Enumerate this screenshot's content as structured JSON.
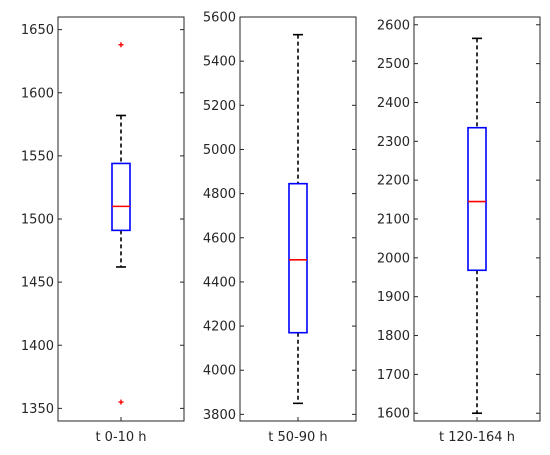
{
  "chart_data": [
    {
      "type": "boxplot",
      "categories": [
        "t 0-10 h"
      ],
      "ylim": [
        1340,
        1660
      ],
      "yticks": [
        1350,
        1400,
        1450,
        1500,
        1550,
        1600,
        1650
      ],
      "boxes": [
        {
          "whisker_low": 1462,
          "q1": 1491,
          "median": 1510,
          "q3": 1544,
          "whisker_high": 1582,
          "outliers": [
            1638,
            1355
          ]
        }
      ]
    },
    {
      "type": "boxplot",
      "categories": [
        "t 50-90 h"
      ],
      "ylim": [
        3770,
        5600
      ],
      "yticks": [
        3800,
        4000,
        4200,
        4400,
        4600,
        4800,
        5000,
        5200,
        5400,
        5600
      ],
      "boxes": [
        {
          "whisker_low": 3850,
          "q1": 4170,
          "median": 4500,
          "q3": 4845,
          "whisker_high": 5520,
          "outliers": []
        }
      ]
    },
    {
      "type": "boxplot",
      "categories": [
        "t 120-164 h"
      ],
      "ylim": [
        1580,
        2620
      ],
      "yticks": [
        1600,
        1700,
        1800,
        1900,
        2000,
        2100,
        2200,
        2300,
        2400,
        2500,
        2600
      ],
      "boxes": [
        {
          "whisker_low": 1600,
          "q1": 1968,
          "median": 2145,
          "q3": 2335,
          "whisker_high": 2565,
          "outliers": []
        }
      ]
    }
  ],
  "colors": {
    "box": "#0000ff",
    "median": "#ff0000",
    "outlier": "#ff0000",
    "whisker": "#000000",
    "axes": "#262626"
  }
}
